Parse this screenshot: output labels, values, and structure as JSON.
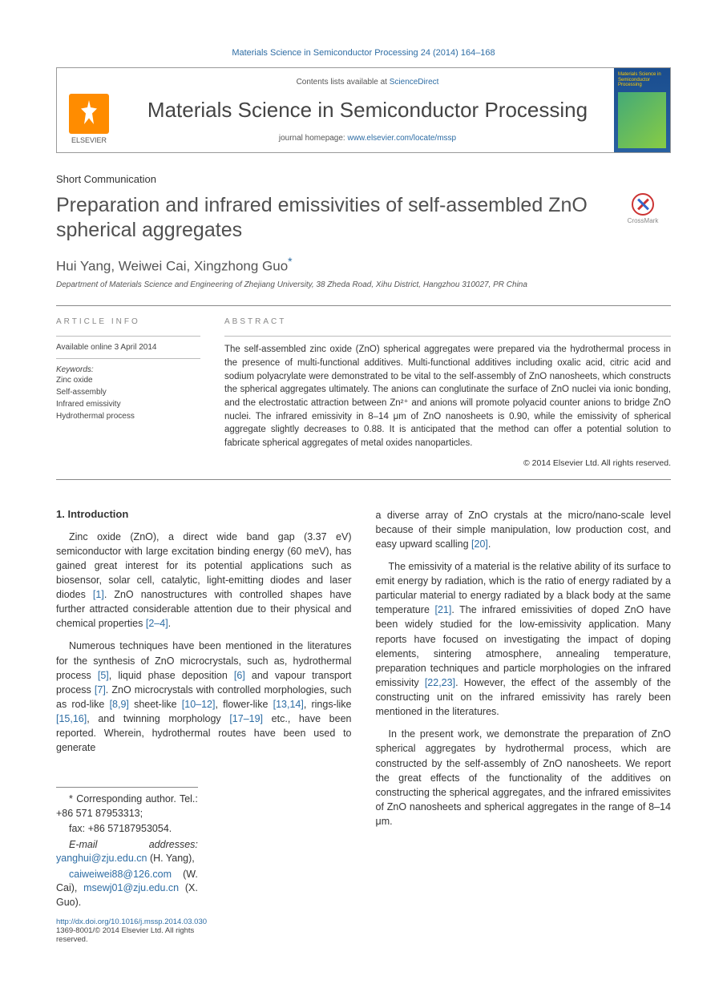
{
  "header": {
    "citation": "Materials Science in Semiconductor Processing 24 (2014) 164–168",
    "contents_prefix": "Contents lists available at ",
    "contents_link": "ScienceDirect",
    "journal_name": "Materials Science in Semiconductor Processing",
    "homepage_prefix": "journal homepage: ",
    "homepage_url": "www.elsevier.com/locate/mssp",
    "publisher_label": "ELSEVIER",
    "cover_title": "Materials Science in Semiconductor Processing"
  },
  "article": {
    "type": "Short Communication",
    "title": "Preparation and infrared emissivities of self-assembled ZnO spherical aggregates",
    "crossmark_label": "CrossMark",
    "authors": "Hui Yang, Weiwei Cai, Xingzhong Guo",
    "corr_symbol": "*",
    "affiliation": "Department of Materials Science and Engineering of Zhejiang University, 38 Zheda Road, Xihu District, Hangzhou 310027, PR China"
  },
  "info": {
    "label": "ARTICLE INFO",
    "available": "Available online 3 April 2014",
    "keywords_label": "Keywords:",
    "keywords": [
      "Zinc oxide",
      "Self-assembly",
      "Infrared emissivity",
      "Hydrothermal process"
    ]
  },
  "abstract": {
    "label": "ABSTRACT",
    "text": "The self-assembled zinc oxide (ZnO) spherical aggregates were prepared via the hydrothermal process in the presence of multi-functional additives. Multi-functional additives including oxalic acid, citric acid and sodium polyacrylate were demonstrated to be vital to the self-assembly of ZnO nanosheets, which constructs the spherical aggregates ultimately. The anions can conglutinate the surface of ZnO nuclei via ionic bonding, and the electrostatic attraction between Zn²⁺ and anions will promote polyacid counter anions to bridge ZnO nuclei. The infrared emissivity in 8–14 μm of ZnO nanosheets is 0.90, while the emissivity of spherical aggregate slightly decreases to 0.88. It is anticipated that the method can offer a potential solution to fabricate spherical aggregates of metal oxides nanoparticles.",
    "copyright": "© 2014 Elsevier Ltd. All rights reserved."
  },
  "body": {
    "section1_heading": "1. Introduction",
    "para1": "Zinc oxide (ZnO), a direct wide band gap (3.37 eV) semiconductor with large excitation binding energy (60 meV), has gained great interest for its potential applications such as biosensor, solar cell, catalytic, light-emitting diodes and laser diodes [1]. ZnO nanostructures with controlled shapes have further attracted considerable attention due to their physical and chemical properties [2–4].",
    "para2": "Numerous techniques have been mentioned in the literatures for the synthesis of ZnO microcrystals, such as, hydrothermal process [5], liquid phase deposition [6] and vapour transport process [7]. ZnO microcrystals with controlled morphologies, such as rod-like [8,9] sheet-like [10–12], flower-like [13,14], rings-like [15,16], and twinning morphology [17–19] etc., have been reported. Wherein, hydrothermal routes have been used to generate",
    "para3": "a diverse array of ZnO crystals at the micro/nano-scale level because of their simple manipulation, low production cost, and easy upward scalling [20].",
    "para4": "The emissivity of a material is the relative ability of its surface to emit energy by radiation, which is the ratio of energy radiated by a particular material to energy radiated by a black body at the same temperature [21]. The infrared emissivities of doped ZnO have been widely studied for the low-emissivity application. Many reports have focused on investigating the impact of doping elements, sintering atmosphere, annealing temperature, preparation techniques and particle morphologies on the infrared emissivity [22,23]. However, the effect of the assembly of the constructing unit on the infrared emissivity has rarely been mentioned in the literatures.",
    "para5": "In the present work, we demonstrate the preparation of ZnO spherical aggregates by hydrothermal process, which are constructed by the self-assembly of ZnO nanosheets. We report the great effects of the functionality of the additives on constructing the spherical aggregates, and the infrared emissivites of ZnO nanosheets and spherical aggregates in the range of 8–14 μm."
  },
  "footnotes": {
    "corr": "* Corresponding author. Tel.: +86 571 87953313;",
    "fax": "fax: +86 57187953054.",
    "emails_label": "E-mail addresses: ",
    "email1": "yanghui@zju.edu.cn",
    "name1": " (H. Yang),",
    "email2": "caiweiwei88@126.com",
    "name2": " (W. Cai), ",
    "email3": "msewj01@zju.edu.cn",
    "name3": " (X. Guo).",
    "doi": "http://dx.doi.org/10.1016/j.mssp.2014.03.030",
    "issn": "1369-8001/© 2014 Elsevier Ltd. All rights reserved."
  },
  "colors": {
    "link": "#2e6da4",
    "elsevier_orange": "#ff8c00",
    "cover_blue": "#1a4d8f",
    "cover_yellow": "#ffcc00",
    "text": "#333333",
    "muted": "#555555",
    "border": "#888888"
  }
}
